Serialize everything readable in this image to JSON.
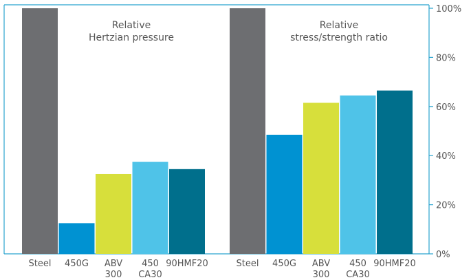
{
  "chart_data": [
    {
      "type": "bar",
      "title": [
        "Relative",
        "Hertzian pressure"
      ],
      "categories": [
        [
          "Steel"
        ],
        [
          "450G"
        ],
        [
          "ABV",
          "300"
        ],
        [
          "450",
          "CA30"
        ],
        [
          "90HMF20"
        ]
      ],
      "values": [
        100,
        12.5,
        32.5,
        37.5,
        34.5
      ],
      "ylim": [
        0,
        100
      ]
    },
    {
      "type": "bar",
      "title": [
        "Relative",
        "stress/strength ratio"
      ],
      "categories": [
        [
          "Steel"
        ],
        [
          "450G"
        ],
        [
          "ABV",
          "300"
        ],
        [
          "450",
          "CA30"
        ],
        [
          "90HMF20"
        ]
      ],
      "values": [
        100,
        48.5,
        61.5,
        64.5,
        66.5
      ],
      "ylim": [
        0,
        100
      ]
    }
  ],
  "y_axis": {
    "ticks": [
      0,
      20,
      40,
      60,
      80,
      100
    ],
    "tick_labels": [
      "0%",
      "20%",
      "40%",
      "60%",
      "80%",
      "100%"
    ]
  },
  "colors": {
    "bars": [
      "#6d6e71",
      "#0092d2",
      "#d7df3b",
      "#4fc3e8",
      "#006f8c"
    ],
    "axis": "#29a3cf",
    "text": "#555555"
  }
}
